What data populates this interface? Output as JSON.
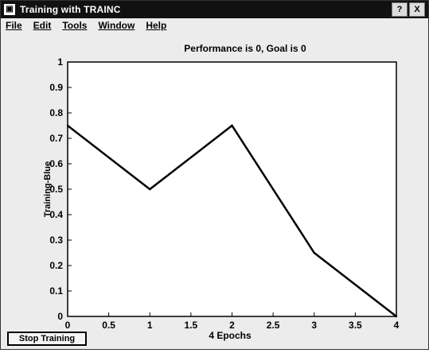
{
  "window": {
    "title": "Training with TRAINC",
    "controls": {
      "help": "?",
      "close": "X"
    }
  },
  "menu": [
    "File",
    "Edit",
    "Tools",
    "Window",
    "Help"
  ],
  "stop_button": {
    "label": "Stop Training"
  },
  "chart_data": {
    "type": "line",
    "title": "Performance is 0, Goal is 0",
    "xlabel": "4 Epochs",
    "ylabel": "Training-Blue",
    "xlim": [
      0,
      4
    ],
    "ylim": [
      0,
      1
    ],
    "xticks": [
      "0",
      "0.5",
      "1",
      "1.5",
      "2",
      "2.5",
      "3",
      "3.5",
      "4"
    ],
    "yticks": [
      "0",
      "0.1",
      "0.2",
      "0.3",
      "0.4",
      "0.5",
      "0.6",
      "0.7",
      "0.8",
      "0.9",
      "1"
    ],
    "series": [
      {
        "x": [
          0,
          1,
          2,
          3,
          4
        ],
        "y": [
          0.75,
          0.5,
          0.75,
          0.25,
          0
        ],
        "color": "#000000"
      }
    ],
    "grid": false
  }
}
